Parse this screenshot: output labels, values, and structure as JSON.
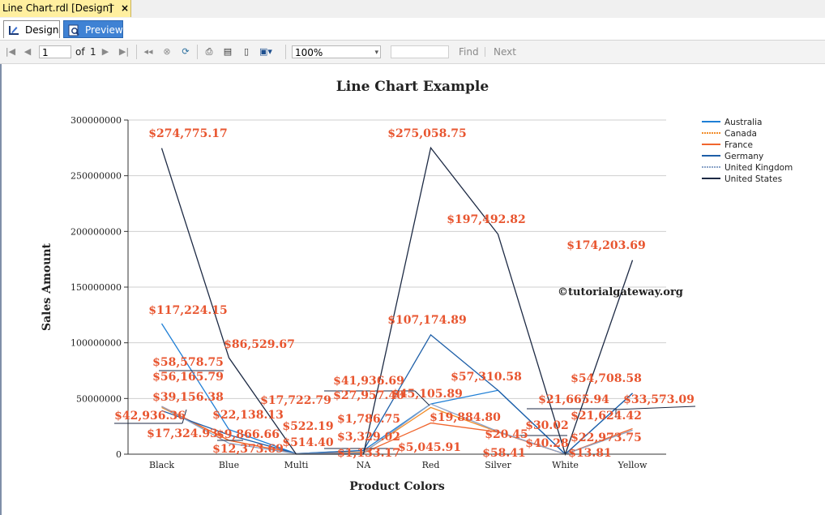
{
  "window": {
    "tab_title": "Line Chart.rdl [Design]",
    "pin_glyph": "⊤",
    "close_glyph": "×"
  },
  "modes": [
    {
      "label": "Design",
      "icon": "design-icon"
    },
    {
      "label": "Preview",
      "icon": "preview-icon"
    }
  ],
  "toolbar": {
    "page_number": "1",
    "of_label": "of",
    "total_pages": "1",
    "zoom": "100%",
    "find_label": "Find",
    "next_label": "Next",
    "icons": [
      "first-page-icon",
      "prev-page-icon",
      "next-page-icon",
      "last-page-icon",
      "back-icon",
      "stop-icon",
      "refresh-icon",
      "print-icon",
      "print-layout-icon",
      "page-setup-icon",
      "export-icon"
    ]
  },
  "watermark": "©tutorialgateway.org",
  "colors": {
    "Australia": "#1f7fd6",
    "Canada": "#f28c28",
    "France": "#f0662e",
    "Germany": "#1e5fa8",
    "United Kingdom": "#8aa3c8",
    "United States": "#1d2a44",
    "label": "#e8552f"
  },
  "chart_data": {
    "type": "line",
    "title": "Line Chart Example",
    "xlabel": "Product Colors",
    "ylabel": "Sales Amount",
    "ylim": [
      0,
      300000000
    ],
    "yticks": [
      "0",
      "50000000",
      "100000000",
      "150000000",
      "200000000",
      "250000000",
      "300000000"
    ],
    "categories": [
      "Black",
      "Blue",
      "Multi",
      "NA",
      "Red",
      "Silver",
      "White",
      "Yellow"
    ],
    "legend": "top-right",
    "grid": true,
    "series": [
      {
        "name": "Australia",
        "values": [
          null,
          null,
          null,
          null,
          null,
          null,
          null,
          null
        ]
      },
      {
        "name": "Canada",
        "values": [
          null,
          null,
          null,
          null,
          null,
          null,
          null,
          null
        ]
      },
      {
        "name": "France",
        "values": [
          null,
          null,
          null,
          null,
          null,
          null,
          null,
          null
        ]
      },
      {
        "name": "Germany",
        "values": [
          null,
          null,
          null,
          null,
          null,
          null,
          null,
          null
        ]
      },
      {
        "name": "United Kingdom",
        "values": [
          null,
          null,
          null,
          null,
          null,
          null,
          null,
          null
        ]
      },
      {
        "name": "United States",
        "values": [
          null,
          null,
          null,
          null,
          null,
          null,
          null,
          null
        ]
      }
    ],
    "data_labels": [
      "$274,775.17",
      "$275,058.75",
      "$197,492.82",
      "$174,203.69",
      "$117,224.15",
      "$107,174.89",
      "$86,529.67",
      "$58,578.75",
      "$56,165.79",
      "$41,936.69",
      "$57,310.58",
      "$54,708.58",
      "$39,156.38",
      "$27,957.40",
      "$45,105.89",
      "$33,573.09",
      "$42,936.36",
      "$17,722.79",
      "$21,665.94",
      "$22,138.13",
      "$1,786.75",
      "$19,884.80",
      "$21,624.42",
      "$17,324.93",
      "$9,866.66",
      "$522.19",
      "$3,329.02",
      "$20.45",
      "$30.02",
      "$22,973.75",
      "$12,373.69",
      "$514.40",
      "$1,133.17",
      "$5,045.91",
      "$58.41",
      "$40.28",
      "$13.81"
    ]
  }
}
